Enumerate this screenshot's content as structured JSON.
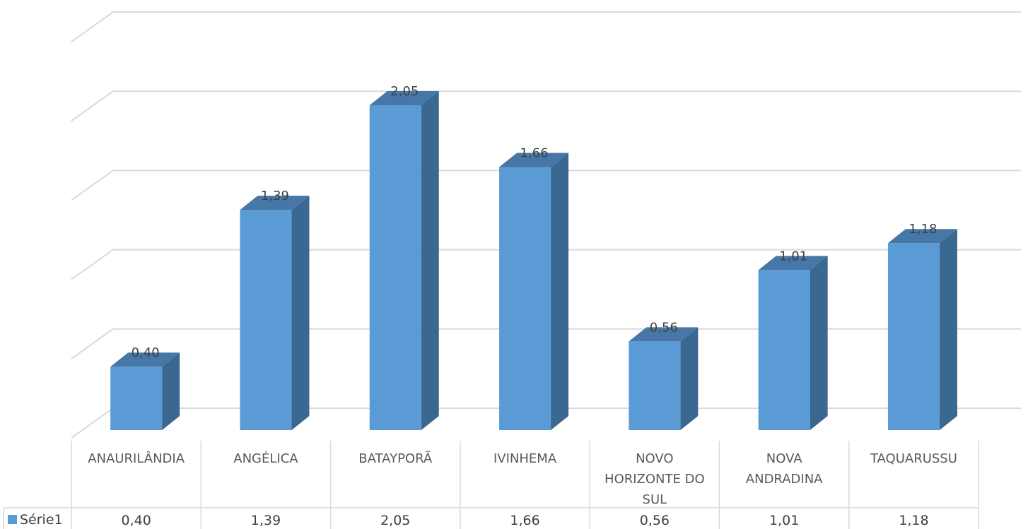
{
  "chart_data": {
    "type": "bar",
    "style": "3d-column-with-data-table",
    "categories": [
      [
        "ANAURILÂNDIA"
      ],
      [
        "ANGÉLICA"
      ],
      [
        "BATAYPORÃ"
      ],
      [
        "IVINHEMA"
      ],
      [
        "NOVO",
        "HORIZONTE DO",
        "SUL"
      ],
      [
        "NOVA",
        "ANDRADINA"
      ],
      [
        "TAQUARUSSU"
      ]
    ],
    "series": [
      {
        "name": "Série1",
        "values": [
          0.4,
          1.39,
          2.05,
          1.66,
          0.56,
          1.01,
          1.18
        ],
        "labels": [
          "0,40",
          "1,39",
          "2,05",
          "1,66",
          "0,56",
          "1,01",
          "1,18"
        ],
        "color": "#5b9bd5",
        "side_color": "#3a6891",
        "top_color": "#4677a7"
      }
    ],
    "ylim": [
      0,
      2.5
    ],
    "grid": true,
    "legend": "data-table-left"
  }
}
